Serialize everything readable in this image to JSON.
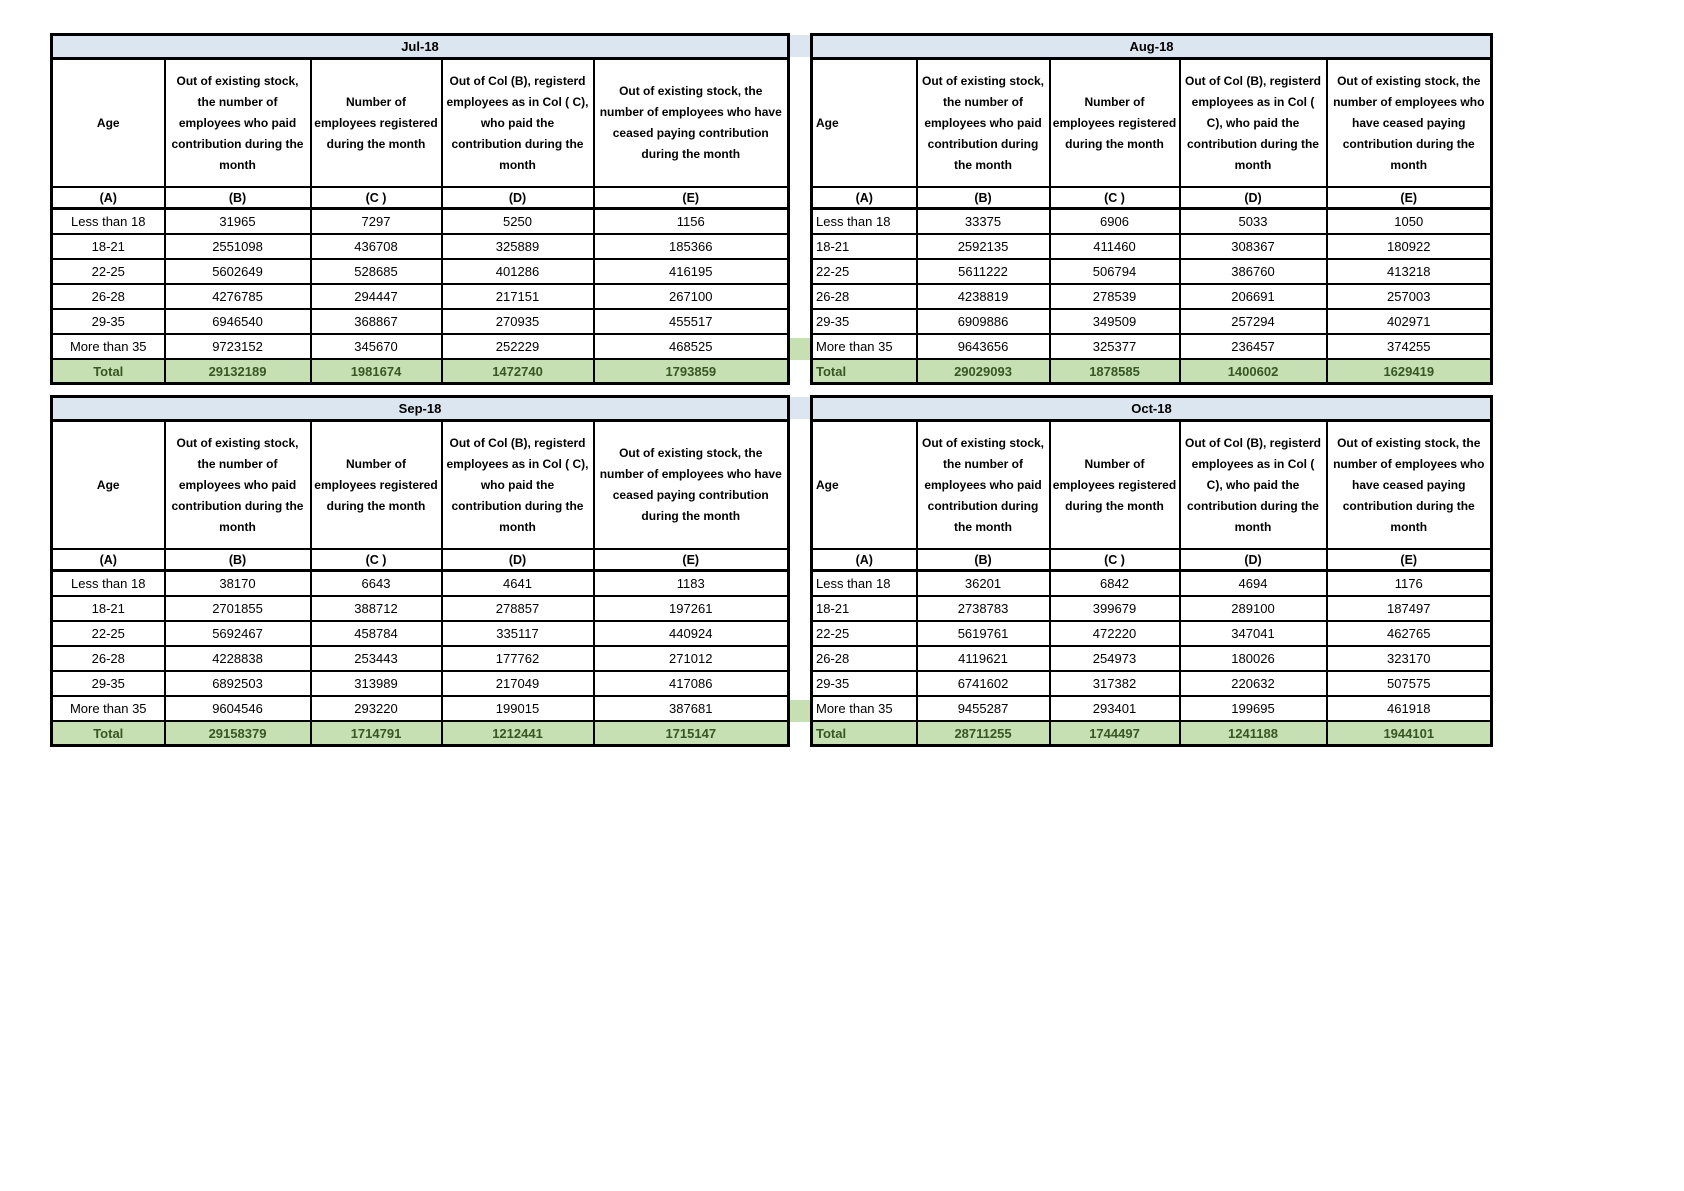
{
  "styles": {
    "title_bg": "#DCE6F1",
    "total_bg": "#C6E0B4",
    "total_text": "#375623",
    "border_color": "#000000"
  },
  "headers": {
    "age": "Age",
    "b": "Out of existing stock, the number of employees who paid contribution during the month",
    "c": "Number of employees registered during the month",
    "d": "Out of Col (B), registerd employees as in Col ( C), who paid the contribution during the month",
    "e": "Out of existing stock, the number of employees who have ceased paying contribution during the month"
  },
  "column_letters": [
    "(A)",
    "(B)",
    "(C )",
    "(D)",
    "(E)"
  ],
  "age_groups": [
    "Less than 18",
    "18-21",
    "22-25",
    "26-28",
    "29-35",
    "More than 35"
  ],
  "total_label": "Total",
  "tables": [
    {
      "month": "Jul-18",
      "align": "center",
      "rows": [
        [
          31965,
          7297,
          5250,
          1156
        ],
        [
          2551098,
          436708,
          325889,
          185366
        ],
        [
          5602649,
          528685,
          401286,
          416195
        ],
        [
          4276785,
          294447,
          217151,
          267100
        ],
        [
          6946540,
          368867,
          270935,
          455517
        ],
        [
          9723152,
          345670,
          252229,
          468525
        ]
      ],
      "total": [
        29132189,
        1981674,
        1472740,
        1793859
      ]
    },
    {
      "month": "Aug-18",
      "align": "left",
      "rows": [
        [
          33375,
          6906,
          5033,
          1050
        ],
        [
          2592135,
          411460,
          308367,
          180922
        ],
        [
          5611222,
          506794,
          386760,
          413218
        ],
        [
          4238819,
          278539,
          206691,
          257003
        ],
        [
          6909886,
          349509,
          257294,
          402971
        ],
        [
          9643656,
          325377,
          236457,
          374255
        ]
      ],
      "total": [
        29029093,
        1878585,
        1400602,
        1629419
      ]
    },
    {
      "month": "Sep-18",
      "align": "center",
      "rows": [
        [
          38170,
          6643,
          4641,
          1183
        ],
        [
          2701855,
          388712,
          278857,
          197261
        ],
        [
          5692467,
          458784,
          335117,
          440924
        ],
        [
          4228838,
          253443,
          177762,
          271012
        ],
        [
          6892503,
          313989,
          217049,
          417086
        ],
        [
          9604546,
          293220,
          199015,
          387681
        ]
      ],
      "total": [
        29158379,
        1714791,
        1212441,
        1715147
      ]
    },
    {
      "month": "Oct-18",
      "align": "left",
      "rows": [
        [
          36201,
          6842,
          4694,
          1176
        ],
        [
          2738783,
          399679,
          289100,
          187497
        ],
        [
          5619761,
          472220,
          347041,
          462765
        ],
        [
          4119621,
          254973,
          180026,
          323170
        ],
        [
          6741602,
          317382,
          220632,
          507575
        ],
        [
          9455287,
          293401,
          199695,
          461918
        ]
      ],
      "total": [
        28711255,
        1744497,
        1241188,
        1944101
      ]
    }
  ]
}
